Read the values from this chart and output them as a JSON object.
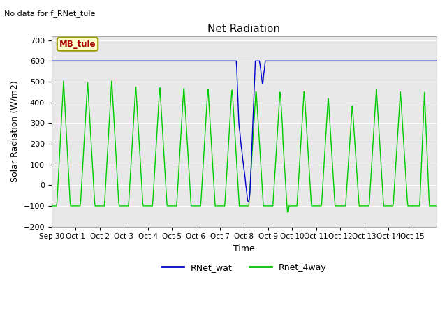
{
  "title": "Net Radiation",
  "subtitle": "No data for f_RNet_tule",
  "xlabel": "Time",
  "ylabel": "Solar Radiation (W/m2)",
  "ylim": [
    -200,
    720
  ],
  "yticks": [
    -200,
    -100,
    0,
    100,
    200,
    300,
    400,
    500,
    600,
    700
  ],
  "legend_labels": [
    "RNet_wat",
    "Rnet_4way"
  ],
  "legend_colors": [
    "#0000cc",
    "#00bb00"
  ],
  "line_color_blue": "#0000cc",
  "line_color_green": "#00cc00",
  "bg_color": "#e8e8e8",
  "annotation_text": "MB_tule",
  "annotation_color": "#aa0000",
  "annotation_bg": "#ffffcc",
  "x_tick_labels": [
    "Sep 30",
    "Oct 1",
    "Oct 2",
    "Oct 3",
    "Oct 4",
    "Oct 5",
    "Oct 6",
    "Oct 7",
    "Oct 8",
    "Oct 9",
    "Oct 10",
    "Oct 11",
    "Oct 12",
    "Oct 13",
    "Oct 14",
    "Oct 15"
  ],
  "night_base_green": -100,
  "night_base_blue": -75,
  "samples_per_day": 48
}
